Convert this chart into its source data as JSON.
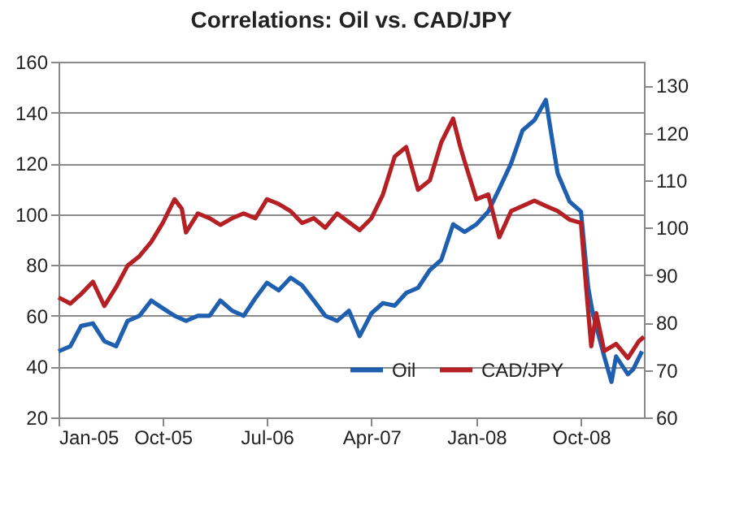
{
  "chart_data": {
    "type": "line",
    "title": "Correlations: Oil vs. CAD/JPY",
    "legend": "bottom",
    "grid": "y",
    "line_style": "solid",
    "marker": "none",
    "xlim": [
      "2005-01-01",
      "2009-03-15"
    ],
    "xticks": [
      {
        "value": "2005-01-01",
        "label": "Jan-05"
      },
      {
        "value": "2005-10-01",
        "label": "Oct-05"
      },
      {
        "value": "2006-07-01",
        "label": "Jul-06"
      },
      {
        "value": "2007-04-01",
        "label": "Apr-07"
      },
      {
        "value": "2008-01-01",
        "label": "Jan-08"
      },
      {
        "value": "2008-10-01",
        "label": "Oct-08"
      }
    ],
    "ylim": [
      20,
      160
    ],
    "yticks": [
      20,
      40,
      60,
      80,
      100,
      120,
      140,
      160
    ],
    "y2lim": [
      60,
      135
    ],
    "y2ticks": [
      60,
      70,
      80,
      90,
      100,
      110,
      120,
      130
    ],
    "series": [
      {
        "name": "Oil",
        "color": "#1f5fb0",
        "x": [
          "2005-01-01",
          "2005-02-01",
          "2005-03-01",
          "2005-04-01",
          "2005-05-01",
          "2005-06-01",
          "2005-07-01",
          "2005-08-01",
          "2005-09-01",
          "2005-10-01",
          "2005-11-01",
          "2005-12-01",
          "2006-01-01",
          "2006-02-01",
          "2006-03-01",
          "2006-04-01",
          "2006-05-01",
          "2006-06-01",
          "2006-07-01",
          "2006-08-01",
          "2006-09-01",
          "2006-10-01",
          "2006-11-01",
          "2006-12-01",
          "2007-01-01",
          "2007-02-01",
          "2007-03-01",
          "2007-04-01",
          "2007-05-01",
          "2007-06-01",
          "2007-07-01",
          "2007-08-01",
          "2007-09-01",
          "2007-10-01",
          "2007-11-01",
          "2007-12-01",
          "2008-01-01",
          "2008-02-01",
          "2008-03-01",
          "2008-04-01",
          "2008-05-01",
          "2008-06-01",
          "2008-07-01",
          "2008-07-20",
          "2008-08-01",
          "2008-09-01",
          "2008-10-01",
          "2008-10-20",
          "2008-11-01",
          "2008-12-01",
          "2008-12-20",
          "2009-01-01",
          "2009-02-01",
          "2009-02-15",
          "2009-03-10"
        ],
        "values": [
          46,
          48,
          56,
          57,
          50,
          48,
          58,
          60,
          66,
          63,
          60,
          58,
          60,
          60,
          66,
          62,
          60,
          67,
          73,
          70,
          75,
          72,
          66,
          60,
          58,
          62,
          52,
          61,
          65,
          64,
          69,
          71,
          78,
          82,
          96,
          93,
          96,
          101,
          110,
          120,
          133,
          137,
          145,
          127,
          116,
          105,
          101,
          71,
          61,
          44,
          34,
          44,
          37,
          39,
          46
        ]
      },
      {
        "name": "CAD/JPY",
        "color": "#b52025",
        "axis": "y2",
        "x": [
          "2005-01-01",
          "2005-02-01",
          "2005-03-01",
          "2005-04-01",
          "2005-05-01",
          "2005-06-01",
          "2005-07-01",
          "2005-08-01",
          "2005-09-01",
          "2005-10-01",
          "2005-11-01",
          "2005-11-20",
          "2005-12-01",
          "2006-01-01",
          "2006-02-01",
          "2006-03-01",
          "2006-04-01",
          "2006-05-01",
          "2006-06-01",
          "2006-07-01",
          "2006-08-01",
          "2006-09-01",
          "2006-10-01",
          "2006-11-01",
          "2006-12-01",
          "2007-01-01",
          "2007-03-01",
          "2007-04-01",
          "2007-05-01",
          "2007-06-01",
          "2007-07-01",
          "2007-08-01",
          "2007-09-01",
          "2007-10-01",
          "2007-11-01",
          "2007-11-20",
          "2007-12-01",
          "2008-01-01",
          "2008-02-01",
          "2008-03-01",
          "2008-04-01",
          "2008-05-01",
          "2008-06-01",
          "2008-07-01",
          "2008-08-01",
          "2008-09-01",
          "2008-10-01",
          "2008-10-15",
          "2008-10-28",
          "2008-11-10",
          "2008-12-01",
          "2009-01-01",
          "2009-02-01",
          "2009-03-01",
          "2009-03-15"
        ],
        "values": [
          85.3,
          84,
          86,
          88.6,
          83.5,
          87.5,
          92,
          94,
          97,
          101,
          106,
          104,
          99,
          103,
          102,
          100.6,
          102,
          103,
          102,
          106,
          105,
          103.5,
          101,
          102,
          100,
          103,
          99.5,
          102,
          107,
          115,
          117,
          108,
          110,
          118,
          123,
          117,
          114,
          106,
          107,
          98,
          103.5,
          104.6,
          105.7,
          104.6,
          103.5,
          101.7,
          101,
          87,
          75,
          82,
          74,
          75.5,
          72.5,
          76,
          77
        ]
      }
    ]
  }
}
